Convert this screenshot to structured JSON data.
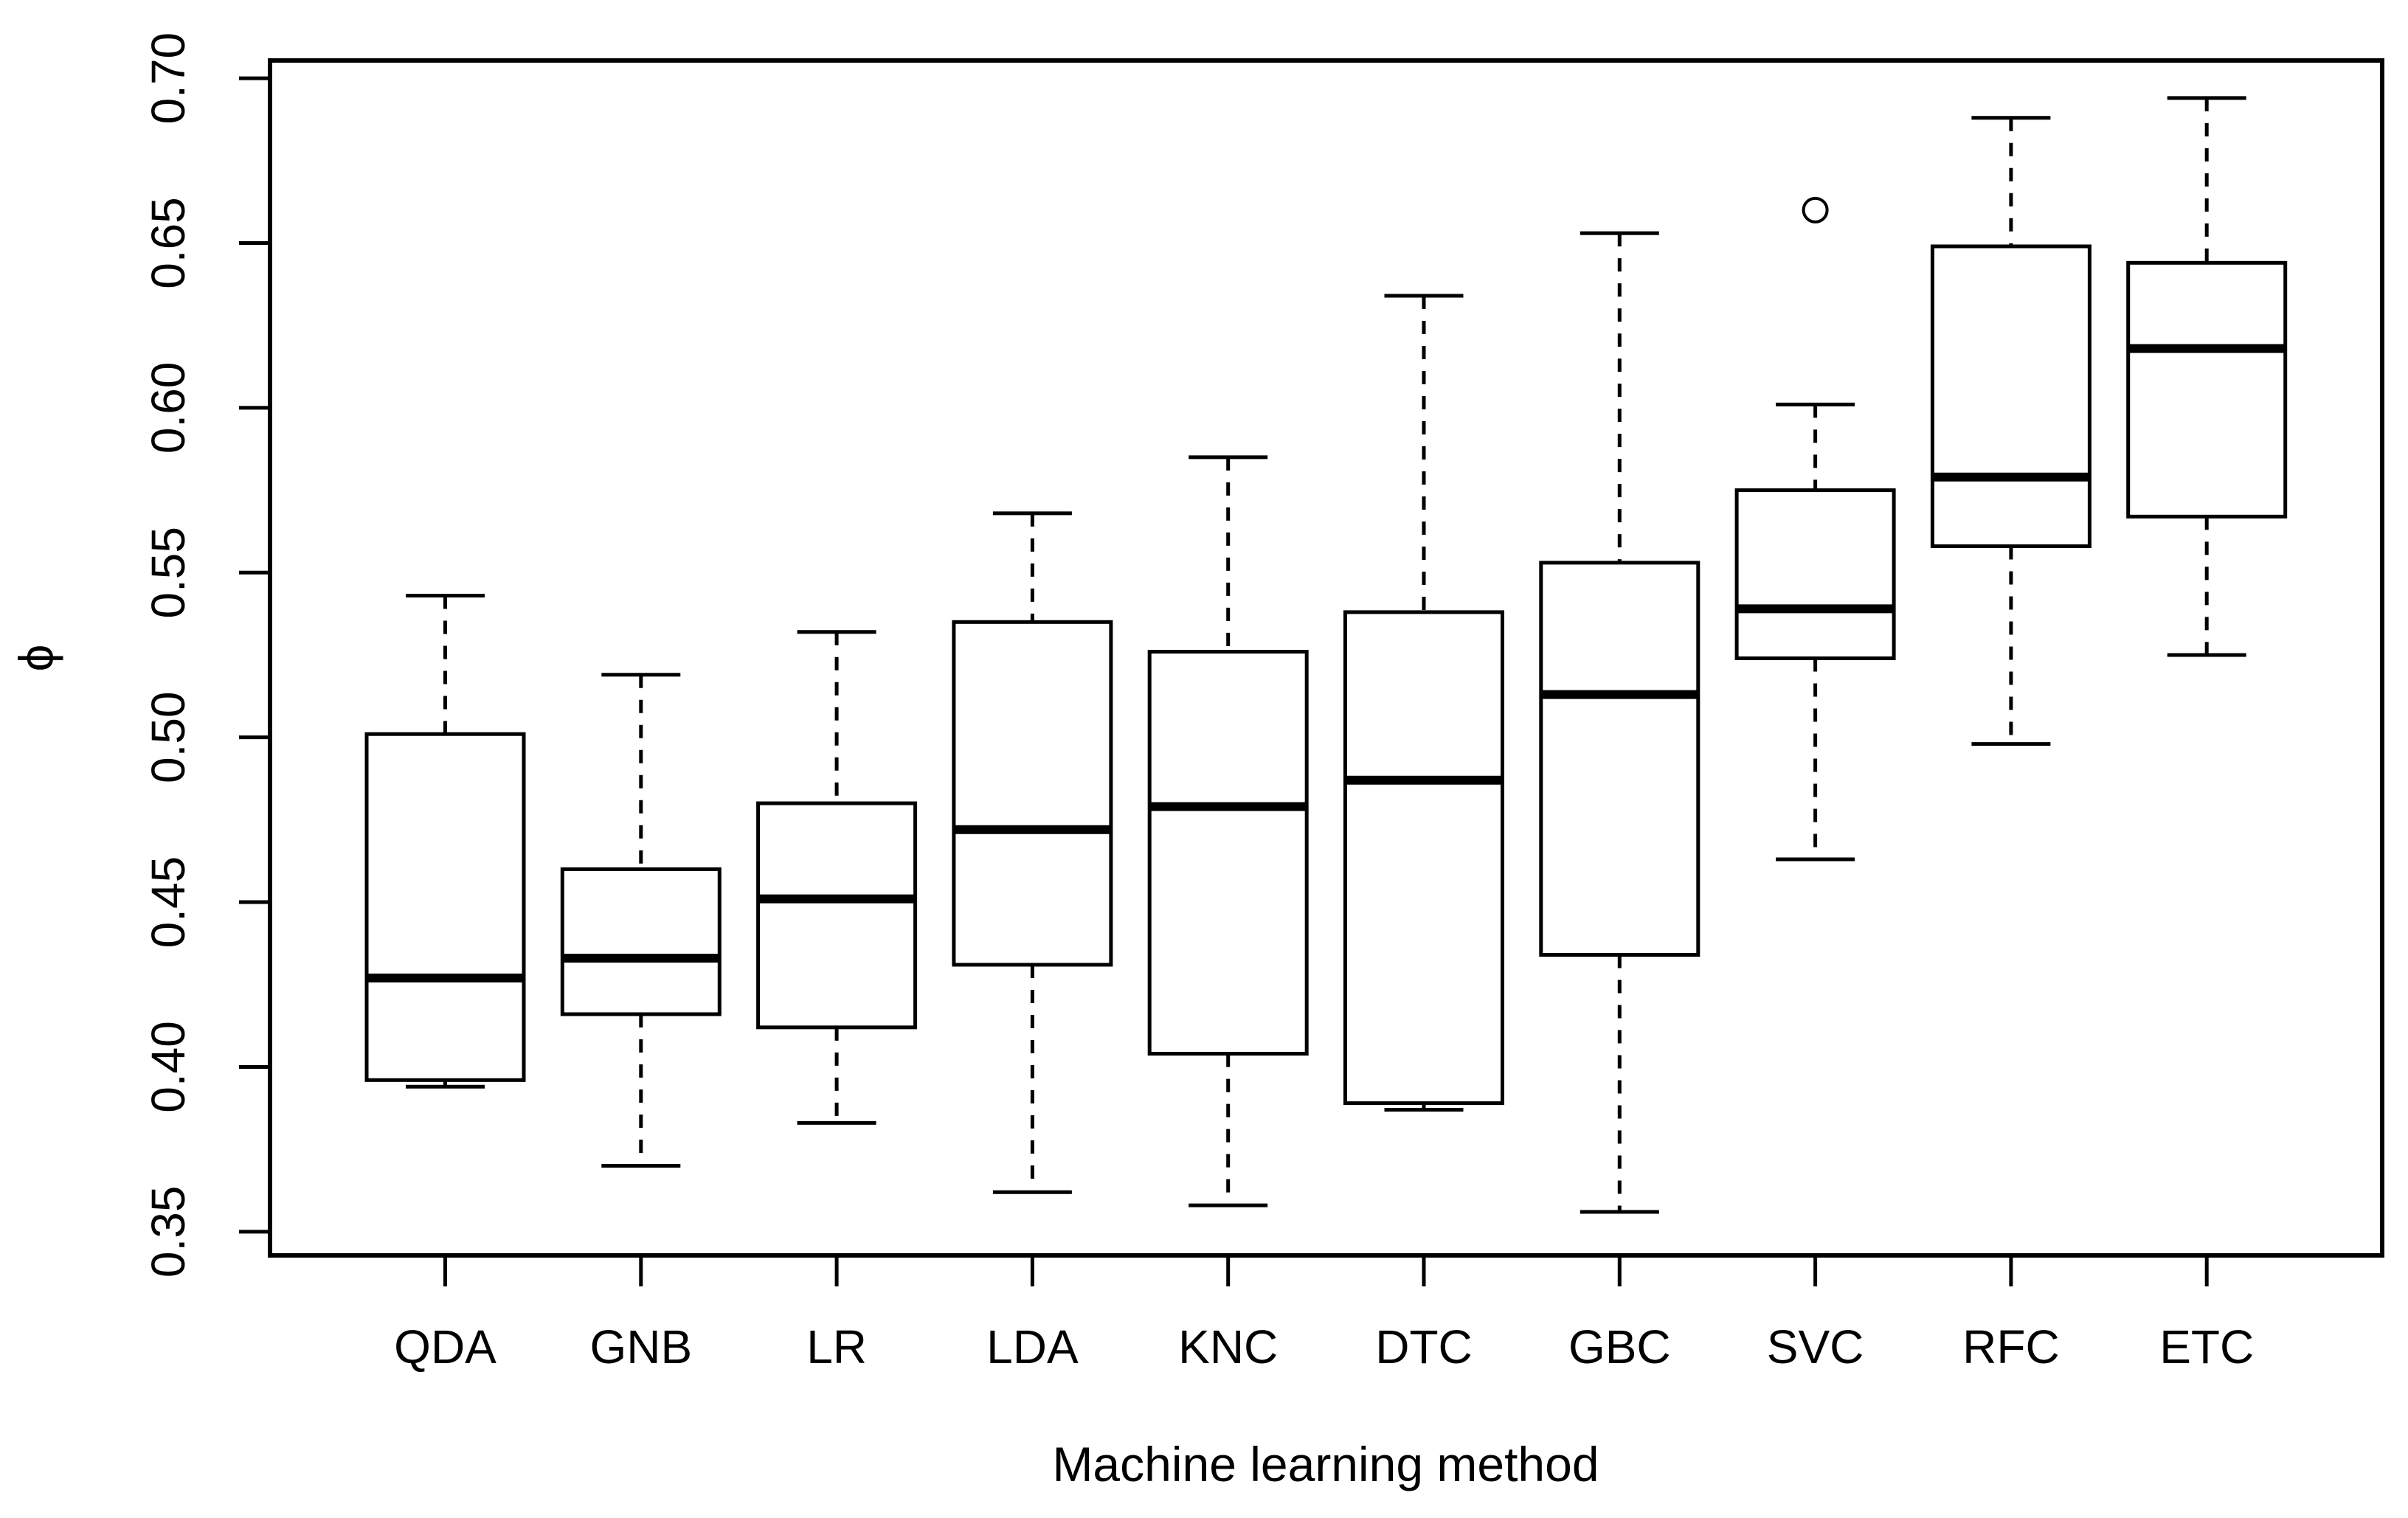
{
  "figure": {
    "background": "#ffffff",
    "ink_color": "#000000"
  },
  "chart_data": {
    "type": "boxplot",
    "title": "",
    "xlabel": "Machine learning method",
    "ylabel": "ϕ",
    "grid": false,
    "legend": null,
    "categories": [
      "QDA",
      "GNB",
      "LR",
      "LDA",
      "KNC",
      "DTC",
      "GBC",
      "SVC",
      "RFC",
      "ETC"
    ],
    "y_ticks": [
      0.35,
      0.4,
      0.45,
      0.5,
      0.55,
      0.6,
      0.65,
      0.7
    ],
    "y_tick_labels": [
      "0.35",
      "0.40",
      "0.45",
      "0.50",
      "0.55",
      "0.60",
      "0.65",
      "0.70"
    ],
    "ylim": [
      0.3428,
      0.7054
    ],
    "boxes": [
      {
        "label": "QDA",
        "whisker_low": 0.394,
        "q1": 0.396,
        "median": 0.427,
        "q3": 0.501,
        "whisker_high": 0.543,
        "outliers": []
      },
      {
        "label": "GNB",
        "whisker_low": 0.37,
        "q1": 0.416,
        "median": 0.433,
        "q3": 0.46,
        "whisker_high": 0.519,
        "outliers": []
      },
      {
        "label": "LR",
        "whisker_low": 0.383,
        "q1": 0.412,
        "median": 0.451,
        "q3": 0.48,
        "whisker_high": 0.532,
        "outliers": []
      },
      {
        "label": "LDA",
        "whisker_low": 0.362,
        "q1": 0.431,
        "median": 0.472,
        "q3": 0.535,
        "whisker_high": 0.568,
        "outliers": []
      },
      {
        "label": "KNC",
        "whisker_low": 0.358,
        "q1": 0.404,
        "median": 0.479,
        "q3": 0.526,
        "whisker_high": 0.585,
        "outliers": []
      },
      {
        "label": "DTC",
        "whisker_low": 0.387,
        "q1": 0.389,
        "median": 0.487,
        "q3": 0.538,
        "whisker_high": 0.634,
        "outliers": []
      },
      {
        "label": "GBC",
        "whisker_low": 0.356,
        "q1": 0.434,
        "median": 0.513,
        "q3": 0.553,
        "whisker_high": 0.653,
        "outliers": []
      },
      {
        "label": "SVC",
        "whisker_low": 0.463,
        "q1": 0.524,
        "median": 0.539,
        "q3": 0.575,
        "whisker_high": 0.601,
        "outliers": [
          0.66
        ]
      },
      {
        "label": "RFC",
        "whisker_low": 0.498,
        "q1": 0.558,
        "median": 0.579,
        "q3": 0.649,
        "whisker_high": 0.688,
        "outliers": []
      },
      {
        "label": "ETC",
        "whisker_low": 0.525,
        "q1": 0.567,
        "median": 0.618,
        "q3": 0.644,
        "whisker_high": 0.694,
        "outliers": []
      }
    ]
  }
}
